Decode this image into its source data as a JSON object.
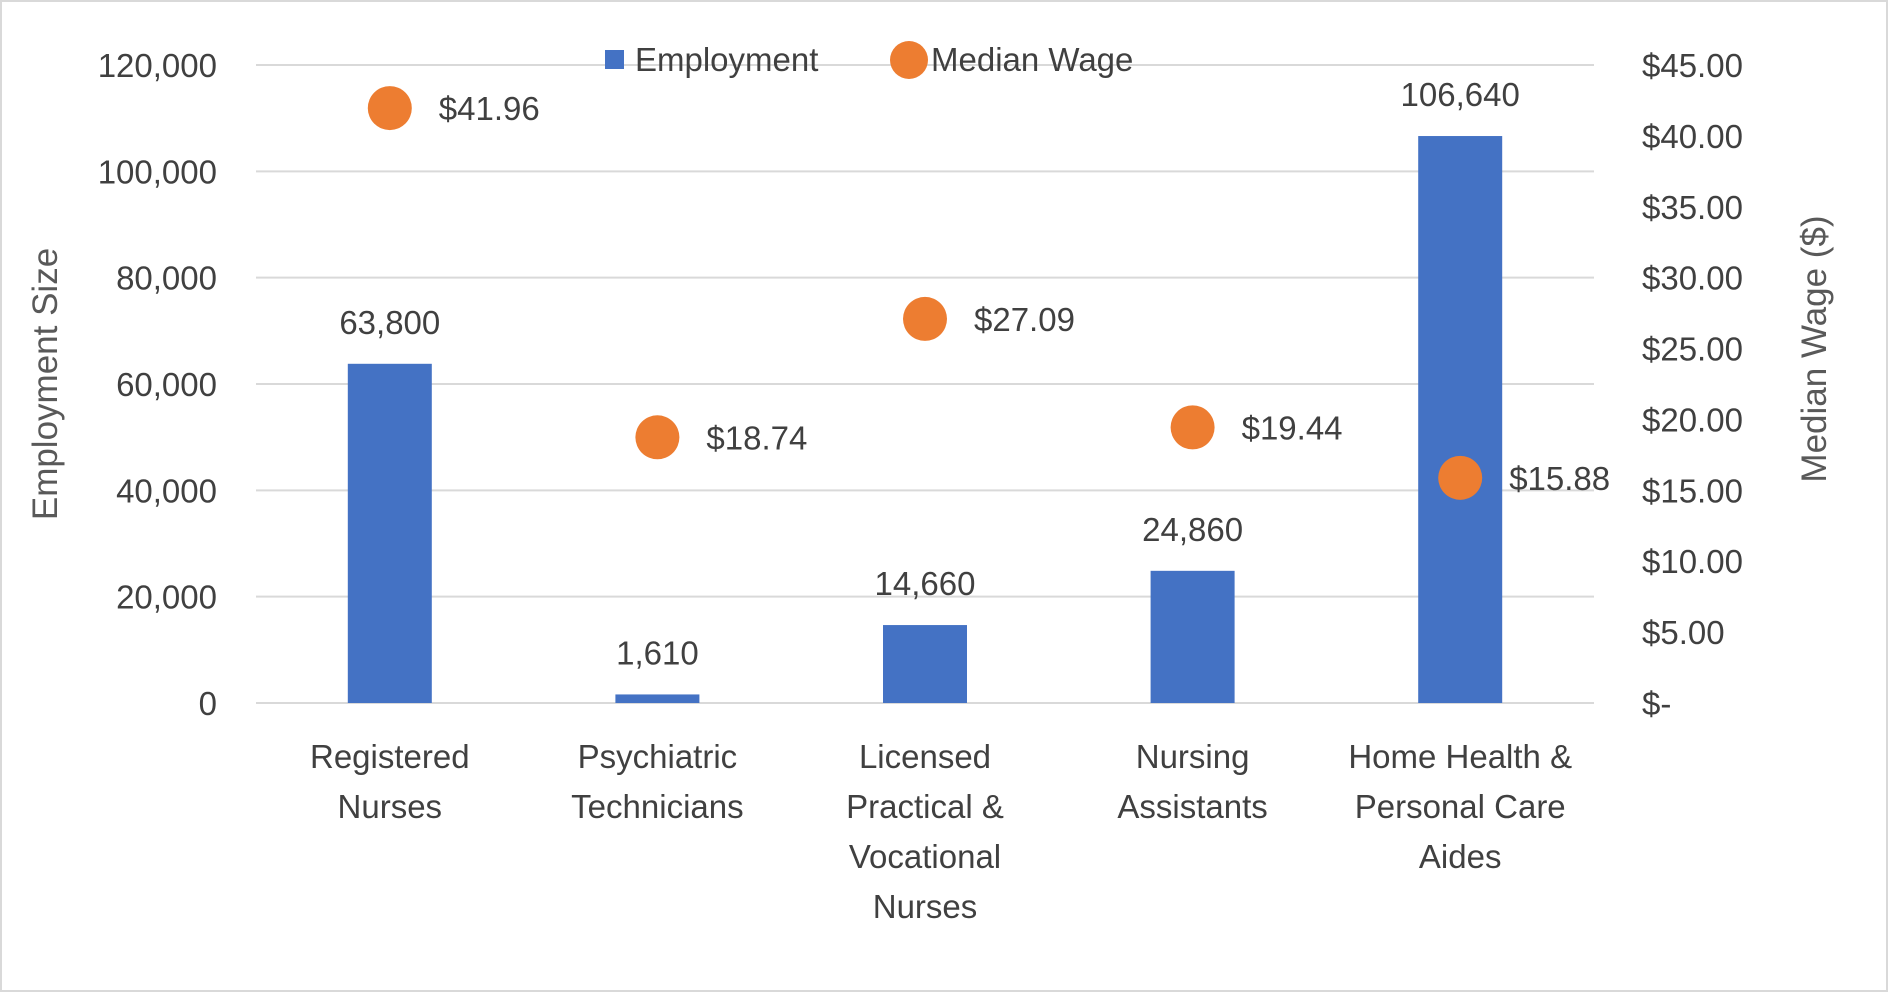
{
  "chart_data": {
    "type": "bar+scatter",
    "title": "",
    "categories": [
      [
        "Registered",
        "Nurses"
      ],
      [
        "Psychiatric",
        "Technicians"
      ],
      [
        "Licensed",
        "Practical &",
        "Vocational",
        "Nurses"
      ],
      [
        "Nursing",
        "Assistants"
      ],
      [
        "Home Health &",
        "Personal Care",
        "Aides"
      ]
    ],
    "series": [
      {
        "name": "Employment",
        "type": "bar",
        "axis": "left",
        "color": "#4472C4",
        "values": [
          63800,
          1610,
          14660,
          24860,
          106640
        ],
        "labels": [
          "63,800",
          "1,610",
          "14,660",
          "24,860",
          "106,640"
        ]
      },
      {
        "name": "Median Wage",
        "type": "scatter",
        "axis": "right",
        "color": "#ED7D31",
        "values": [
          41.96,
          18.74,
          27.09,
          19.44,
          15.88
        ],
        "labels": [
          "$41.96",
          "$18.74",
          "$27.09",
          "$19.44",
          "$15.88"
        ]
      }
    ],
    "ylabel": "Employment Size",
    "y2label": "Median Wage ($)",
    "ylim": [
      0,
      120000
    ],
    "y2lim": [
      0,
      45
    ],
    "yticks": [
      "0",
      "20,000",
      "40,000",
      "60,000",
      "80,000",
      "100,000",
      "120,000"
    ],
    "y2ticks": [
      "$-",
      "$5.00",
      "$10.00",
      "$15.00",
      "$20.00",
      "$25.00",
      "$30.00",
      "$35.00",
      "$40.00",
      "$45.00"
    ],
    "grid": true,
    "legend_position": "top"
  }
}
